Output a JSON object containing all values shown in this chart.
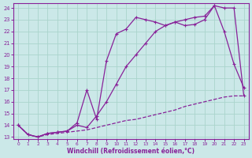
{
  "xlabel": "Windchill (Refroidissement éolien,°C)",
  "bg_color": "#cbe8e8",
  "grid_color": "#aad4cc",
  "line_color": "#882299",
  "xlim": [
    -0.5,
    23.5
  ],
  "ylim": [
    12.8,
    24.4
  ],
  "xticks": [
    0,
    1,
    2,
    3,
    4,
    5,
    6,
    7,
    8,
    9,
    10,
    11,
    12,
    13,
    14,
    15,
    16,
    17,
    18,
    19,
    20,
    21,
    22,
    23
  ],
  "yticks": [
    13,
    14,
    15,
    16,
    17,
    18,
    19,
    20,
    21,
    22,
    23,
    24
  ],
  "line1_x": [
    0,
    1,
    2,
    3,
    4,
    5,
    6,
    7,
    8,
    9,
    10,
    11,
    12,
    13,
    14,
    15,
    16,
    17,
    18,
    19,
    20,
    21,
    22,
    23
  ],
  "line1_y": [
    14.0,
    13.2,
    13.0,
    13.2,
    13.3,
    13.4,
    13.5,
    13.6,
    13.8,
    14.0,
    14.2,
    14.4,
    14.5,
    14.7,
    14.9,
    15.1,
    15.3,
    15.6,
    15.8,
    16.0,
    16.2,
    16.4,
    16.5,
    16.5
  ],
  "line2_x": [
    0,
    1,
    2,
    3,
    4,
    5,
    6,
    7,
    8,
    9,
    10,
    11,
    12,
    13,
    14,
    15,
    16,
    17,
    18,
    19,
    20,
    21,
    22,
    23
  ],
  "line2_y": [
    14.0,
    13.2,
    13.0,
    13.3,
    13.4,
    13.5,
    14.0,
    13.8,
    14.8,
    16.0,
    17.5,
    19.0,
    20.0,
    21.0,
    22.0,
    22.5,
    22.8,
    23.0,
    23.2,
    23.3,
    24.2,
    24.0,
    24.0,
    16.5
  ],
  "line3_x": [
    0,
    1,
    2,
    3,
    4,
    5,
    6,
    7,
    8,
    9,
    10,
    11,
    12,
    13,
    14,
    15,
    16,
    17,
    18,
    19,
    20,
    21,
    22,
    23
  ],
  "line3_y": [
    14.0,
    13.2,
    13.0,
    13.3,
    13.4,
    13.5,
    14.2,
    17.0,
    14.5,
    19.5,
    21.8,
    22.2,
    23.2,
    23.0,
    22.8,
    22.5,
    22.8,
    22.5,
    22.6,
    23.0,
    24.2,
    22.0,
    19.2,
    17.2
  ]
}
